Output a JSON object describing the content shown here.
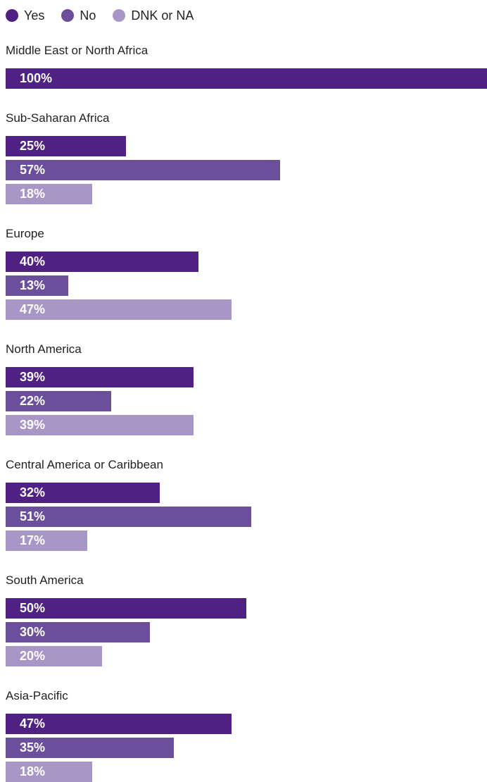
{
  "chart_data": {
    "type": "bar",
    "orientation": "horizontal",
    "grouping": "grouped",
    "title": "",
    "xlabel": "",
    "ylabel": "",
    "xlim": [
      0,
      100
    ],
    "grid": false,
    "legend": {
      "placement": "top-left",
      "entries": [
        {
          "name": "Yes",
          "color": "#4e2183"
        },
        {
          "name": "No",
          "color": "#6b4f9c"
        },
        {
          "name": "DNK or NA",
          "color": "#a896c6"
        }
      ]
    },
    "categories": [
      "Middle East or North Africa",
      "Sub-Saharan Africa",
      "Europe",
      "North America",
      "Central America or Caribbean",
      "South America",
      "Asia-Pacific"
    ],
    "series": [
      {
        "name": "Yes",
        "color": "#4e2183",
        "values": [
          100,
          25,
          40,
          39,
          32,
          50,
          47
        ]
      },
      {
        "name": "No",
        "color": "#6b4f9c",
        "values": [
          null,
          57,
          13,
          22,
          51,
          30,
          35
        ]
      },
      {
        "name": "DNK or NA",
        "color": "#a896c6",
        "values": [
          null,
          18,
          47,
          39,
          17,
          20,
          18
        ]
      }
    ],
    "data_labels": [
      [
        "100%",
        null,
        null
      ],
      [
        "25%",
        "57%",
        "18%"
      ],
      [
        "40%",
        "13%",
        "47%"
      ],
      [
        "39%",
        "22%",
        "39%"
      ],
      [
        "32%",
        "51%",
        "17%"
      ],
      [
        "50%",
        "30%",
        "20%"
      ],
      [
        "47%",
        "35%",
        "18%"
      ]
    ]
  }
}
